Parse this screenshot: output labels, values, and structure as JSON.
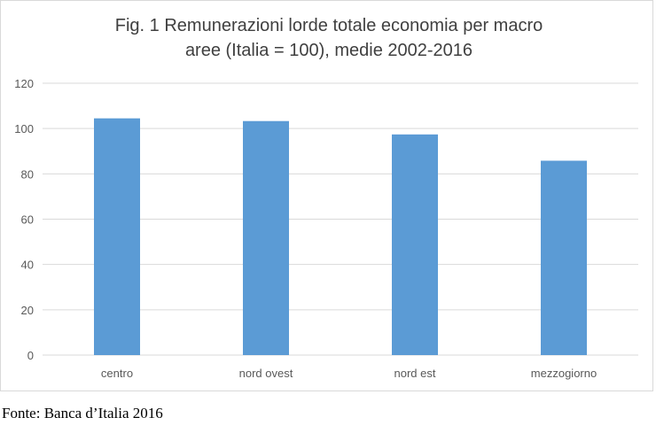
{
  "chart_data": {
    "type": "bar",
    "title_lines": [
      "Fig. 1  Remunerazioni lorde totale economia per macro",
      "aree (Italia = 100), medie 2002-2016"
    ],
    "categories": [
      "centro",
      "nord ovest",
      "nord est",
      "mezzogiorno"
    ],
    "values": [
      104.5,
      103.3,
      97.4,
      85.8
    ],
    "yticks": [
      0,
      20,
      40,
      60,
      80,
      100,
      120
    ],
    "ylim": [
      0,
      120
    ],
    "grid": true,
    "legend": "none",
    "bar_color": "#5b9bd5",
    "grid_color": "#d9d9d9"
  },
  "source": "Fonte: Banca d’Italia 2016"
}
